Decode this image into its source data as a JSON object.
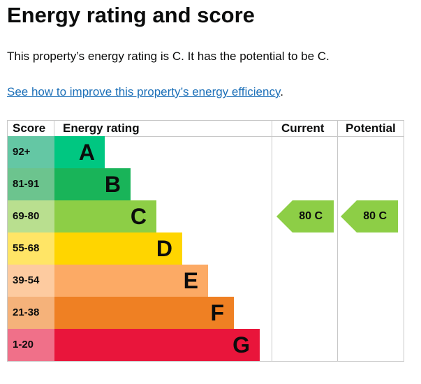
{
  "title": "Energy rating and score",
  "summary": "This property’s energy rating is C. It has the potential to be C.",
  "link": "See how to improve this property’s energy efficiency",
  "link_suffix": ".",
  "table": {
    "headers": {
      "score": "Score",
      "rating": "Energy rating",
      "current": "Current",
      "potential": "Potential"
    },
    "rows": [
      {
        "score": "92+",
        "band": "A",
        "color": "#00c781",
        "score_color": "#64c7a4"
      },
      {
        "score": "81-91",
        "band": "B",
        "color": "#19b459",
        "score_color": "#6cc48e"
      },
      {
        "score": "69-80",
        "band": "C",
        "color": "#8dce46",
        "score_color": "#b9df8f"
      },
      {
        "score": "55-68",
        "band": "D",
        "color": "#ffd500",
        "score_color": "#ffe566"
      },
      {
        "score": "39-54",
        "band": "E",
        "color": "#fcaa65",
        "score_color": "#fdcba0"
      },
      {
        "score": "21-38",
        "band": "F",
        "color": "#ef8023",
        "score_color": "#f5b27a"
      },
      {
        "score": "1-20",
        "band": "G",
        "color": "#e9153b",
        "score_color": "#f07089"
      }
    ],
    "current": {
      "label": "80  C",
      "score": 80,
      "band": "C",
      "color": "#8dce46"
    },
    "potential": {
      "label": "80  C",
      "score": 80,
      "band": "C",
      "color": "#8dce46"
    }
  }
}
